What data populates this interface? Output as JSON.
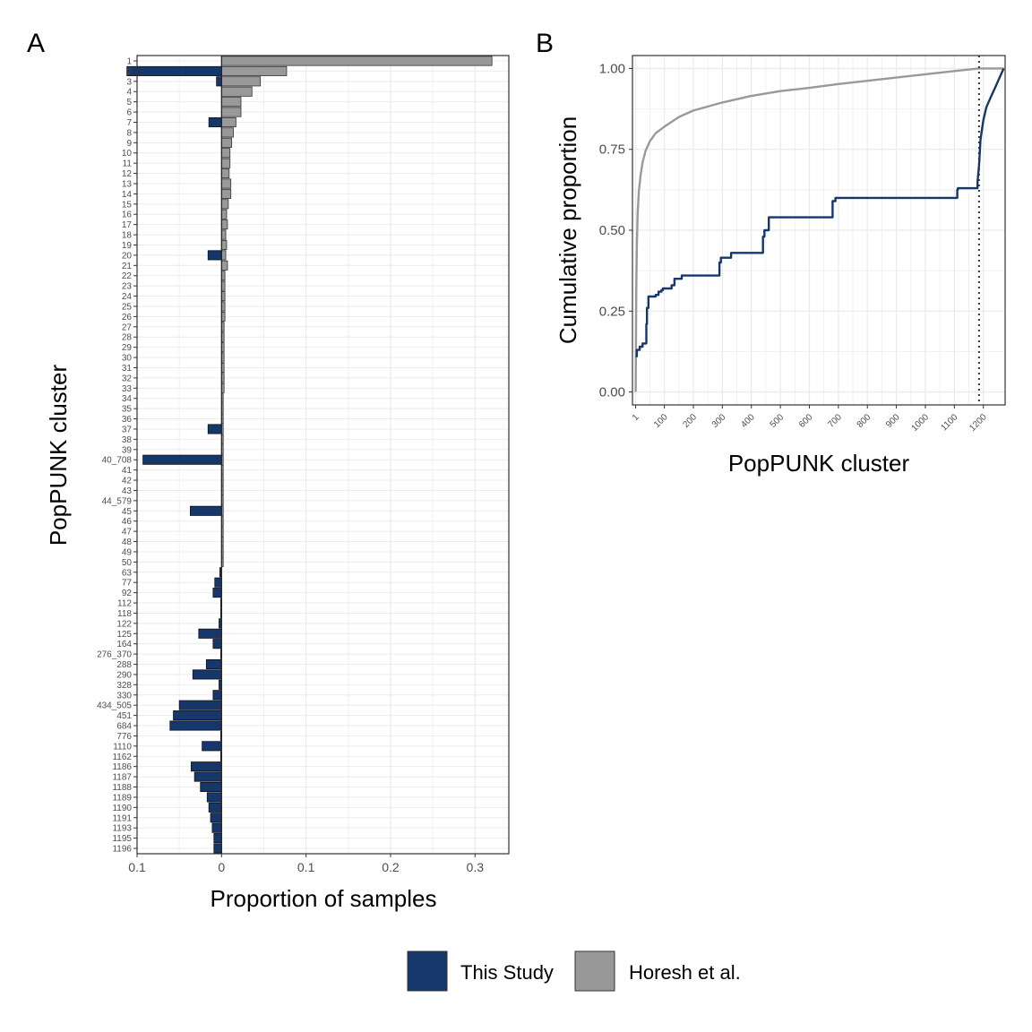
{
  "panels": {
    "a_label": "A",
    "b_label": "B"
  },
  "colors": {
    "this_study": "#16376b",
    "horesh": "#999999",
    "grid": "#ebebeb",
    "frame": "#333333"
  },
  "legend": {
    "entries": [
      {
        "label": "This Study"
      },
      {
        "label": "Horesh et al."
      }
    ]
  },
  "chart_data": [
    {
      "type": "bar",
      "orientation": "horizontal",
      "xlabel": "Proportion of samples",
      "ylabel": "PopPUNK cluster",
      "xlim": [
        -0.1,
        0.34
      ],
      "x_tick_values": [
        -0.1,
        0,
        0.1,
        0.2,
        0.3
      ],
      "x_tick_labels": [
        "0.1",
        "0",
        "0.1",
        "0.2",
        "0.3"
      ],
      "grid": true,
      "categories": [
        "1",
        "2",
        "3",
        "4",
        "5",
        "6",
        "7",
        "8",
        "9",
        "10",
        "11",
        "12",
        "13",
        "14",
        "15",
        "16",
        "17",
        "18",
        "19",
        "20",
        "21",
        "22",
        "23",
        "24",
        "25",
        "26",
        "27",
        "28",
        "29",
        "30",
        "31",
        "32",
        "33",
        "34",
        "35",
        "36",
        "37",
        "38",
        "39",
        "40_708",
        "41",
        "42",
        "43",
        "44_579",
        "45",
        "46",
        "47",
        "48",
        "49",
        "50",
        "63",
        "77",
        "92",
        "112",
        "118",
        "122",
        "125",
        "164",
        "276_370",
        "288",
        "290",
        "328",
        "330",
        "434_505",
        "451",
        "684",
        "776",
        "1110",
        "1162",
        "1186",
        "1187",
        "1188",
        "1189",
        "1190",
        "1191",
        "1193",
        "1195",
        "1196"
      ],
      "series": [
        {
          "name": "This Study",
          "values": [
            0,
            0.112,
            0.006,
            0,
            0,
            0,
            0.015,
            0,
            0,
            0,
            0,
            0,
            0,
            0,
            0,
            0,
            0,
            0,
            0,
            0.016,
            0,
            0,
            0,
            0,
            0,
            0,
            0,
            0,
            0,
            0,
            0,
            0,
            0,
            0,
            0,
            0,
            0.016,
            0,
            0,
            0.093,
            0,
            0,
            0,
            0,
            0.037,
            0,
            0,
            0,
            0,
            0,
            0.002,
            0.008,
            0.01,
            0.001,
            0.001,
            0.003,
            0.027,
            0.01,
            0.001,
            0.018,
            0.034,
            0.003,
            0.01,
            0.05,
            0.057,
            0.061,
            0.001,
            0.023,
            0.001,
            0.036,
            0.032,
            0.025,
            0.017,
            0.015,
            0.013,
            0.011,
            0.009,
            0.009
          ]
        },
        {
          "name": "Horesh et al.",
          "values": [
            0.32,
            0.077,
            0.046,
            0.036,
            0.023,
            0.023,
            0.017,
            0.014,
            0.012,
            0.01,
            0.01,
            0.009,
            0.011,
            0.011,
            0.008,
            0.006,
            0.007,
            0.005,
            0.006,
            0.005,
            0.007,
            0.004,
            0.004,
            0.004,
            0.004,
            0.004,
            0.003,
            0.003,
            0.003,
            0.003,
            0.003,
            0.003,
            0.003,
            0.002,
            0.002,
            0.002,
            0.002,
            0.002,
            0.002,
            0.002,
            0.002,
            0.002,
            0.002,
            0.002,
            0.002,
            0.002,
            0.002,
            0.002,
            0.002,
            0.002,
            0,
            0,
            0,
            0,
            0,
            0,
            0,
            0,
            0,
            0,
            0,
            0,
            0,
            0,
            0,
            0,
            0,
            0,
            0,
            0,
            0,
            0,
            0,
            0,
            0,
            0,
            0,
            0
          ]
        }
      ]
    },
    {
      "type": "line",
      "xlabel": "PopPUNK cluster",
      "ylabel": "Cumulative proportion",
      "xlim": [
        -10,
        1275
      ],
      "ylim": [
        -0.04,
        1.04
      ],
      "x_ticks": [
        1,
        100,
        200,
        300,
        400,
        500,
        600,
        700,
        800,
        900,
        1000,
        1100,
        1200
      ],
      "y_ticks": [
        0,
        0.25,
        0.5,
        0.75,
        1.0
      ],
      "y_tick_labels": [
        "0.00",
        "0.25",
        "0.50",
        "0.75",
        "1.00"
      ],
      "grid": true,
      "vline_x": 1185,
      "series": [
        {
          "name": "This Study",
          "x": [
            1,
            5,
            5,
            15,
            15,
            25,
            25,
            38,
            38,
            40,
            40,
            45,
            45,
            70,
            70,
            80,
            80,
            90,
            90,
            95,
            95,
            125,
            125,
            135,
            135,
            160,
            160,
            290,
            290,
            295,
            295,
            330,
            330,
            440,
            440,
            445,
            445,
            460,
            460,
            680,
            680,
            690,
            690,
            1110,
            1110,
            1112,
            1112,
            1180,
            1180,
            1185,
            1190,
            1200,
            1210,
            1225,
            1240,
            1255,
            1270
          ],
          "y": [
            0.11,
            0.11,
            0.13,
            0.13,
            0.14,
            0.14,
            0.15,
            0.15,
            0.21,
            0.21,
            0.26,
            0.26,
            0.295,
            0.295,
            0.3,
            0.3,
            0.31,
            0.31,
            0.315,
            0.315,
            0.32,
            0.32,
            0.33,
            0.33,
            0.35,
            0.35,
            0.36,
            0.36,
            0.4,
            0.4,
            0.415,
            0.415,
            0.43,
            0.43,
            0.48,
            0.48,
            0.5,
            0.5,
            0.54,
            0.54,
            0.59,
            0.59,
            0.6,
            0.6,
            0.625,
            0.625,
            0.63,
            0.63,
            0.65,
            0.7,
            0.78,
            0.84,
            0.88,
            0.91,
            0.94,
            0.97,
            1.0
          ]
        },
        {
          "name": "Horesh et al.",
          "x": [
            1,
            3,
            5,
            8,
            12,
            18,
            25,
            35,
            50,
            70,
            100,
            150,
            200,
            300,
            400,
            500,
            600,
            700,
            800,
            900,
            1000,
            1100,
            1185,
            1200,
            1270
          ],
          "y": [
            0,
            0.3,
            0.45,
            0.55,
            0.62,
            0.67,
            0.71,
            0.745,
            0.775,
            0.8,
            0.82,
            0.85,
            0.87,
            0.895,
            0.915,
            0.93,
            0.94,
            0.952,
            0.962,
            0.972,
            0.982,
            0.992,
            1.0,
            1.0,
            1.0
          ]
        }
      ]
    }
  ]
}
